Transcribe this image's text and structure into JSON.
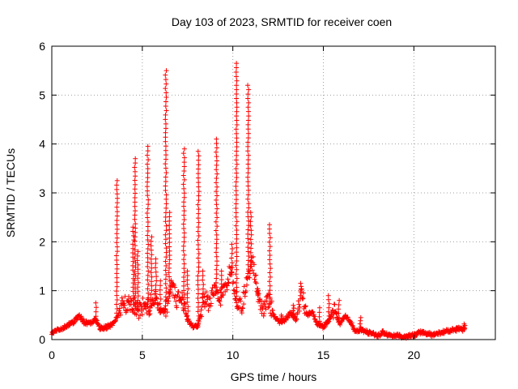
{
  "chart_data": {
    "type": "scatter",
    "title": "Day 103 of 2023, SRMTID for receiver coen",
    "xlabel": "GPS time / hours",
    "ylabel": "SRMTID / TECUs",
    "xlim": [
      0,
      24.5
    ],
    "ylim": [
      0,
      6
    ],
    "xticks": [
      0,
      5,
      10,
      15,
      20
    ],
    "yticks": [
      0,
      1,
      2,
      3,
      4,
      5,
      6
    ],
    "grid": true,
    "marker": "+",
    "series": [
      {
        "name": "SRMTID",
        "color": "#ff0000",
        "baseline": [
          [
            0.0,
            0.12
          ],
          [
            0.3,
            0.2
          ],
          [
            0.6,
            0.22
          ],
          [
            0.9,
            0.3
          ],
          [
            1.2,
            0.35
          ],
          [
            1.5,
            0.5
          ],
          [
            1.8,
            0.35
          ],
          [
            2.1,
            0.33
          ],
          [
            2.4,
            0.42
          ],
          [
            2.7,
            0.22
          ],
          [
            3.0,
            0.25
          ],
          [
            3.3,
            0.3
          ],
          [
            3.6,
            0.45
          ],
          [
            3.9,
            0.75
          ],
          [
            4.2,
            0.7
          ],
          [
            4.5,
            0.72
          ],
          [
            4.8,
            0.6
          ],
          [
            5.1,
            0.72
          ],
          [
            5.4,
            0.65
          ],
          [
            5.7,
            0.9
          ],
          [
            6.0,
            0.55
          ],
          [
            6.3,
            0.6
          ],
          [
            6.6,
            1.1
          ],
          [
            6.9,
            0.8
          ],
          [
            7.2,
            0.9
          ],
          [
            7.5,
            0.4
          ],
          [
            7.8,
            0.25
          ],
          [
            8.1,
            0.3
          ],
          [
            8.4,
            0.85
          ],
          [
            8.7,
            0.75
          ],
          [
            9.0,
            1.05
          ],
          [
            9.3,
            0.85
          ],
          [
            9.6,
            1.0
          ],
          [
            9.9,
            1.5
          ],
          [
            10.2,
            0.8
          ],
          [
            10.5,
            0.65
          ],
          [
            10.8,
            1.3
          ],
          [
            11.1,
            1.6
          ],
          [
            11.4,
            0.9
          ],
          [
            11.7,
            0.6
          ],
          [
            12.0,
            0.8
          ],
          [
            12.3,
            0.45
          ],
          [
            12.6,
            0.35
          ],
          [
            12.9,
            0.4
          ],
          [
            13.2,
            0.55
          ],
          [
            13.5,
            0.4
          ],
          [
            13.8,
            1.0
          ],
          [
            14.1,
            0.5
          ],
          [
            14.4,
            0.55
          ],
          [
            14.7,
            0.3
          ],
          [
            15.0,
            0.25
          ],
          [
            15.3,
            0.4
          ],
          [
            15.6,
            0.65
          ],
          [
            15.9,
            0.3
          ],
          [
            16.2,
            0.5
          ],
          [
            16.5,
            0.35
          ],
          [
            16.8,
            0.15
          ],
          [
            17.1,
            0.2
          ],
          [
            17.4,
            0.15
          ],
          [
            17.7,
            0.12
          ],
          [
            18.0,
            0.08
          ],
          [
            18.3,
            0.15
          ],
          [
            18.6,
            0.1
          ],
          [
            18.9,
            0.08
          ],
          [
            19.2,
            0.07
          ],
          [
            19.5,
            0.05
          ],
          [
            19.8,
            0.08
          ],
          [
            20.1,
            0.1
          ],
          [
            20.4,
            0.15
          ],
          [
            20.7,
            0.12
          ],
          [
            21.0,
            0.1
          ],
          [
            21.3,
            0.12
          ],
          [
            21.6,
            0.15
          ],
          [
            21.9,
            0.18
          ],
          [
            22.2,
            0.2
          ],
          [
            22.5,
            0.22
          ],
          [
            22.8,
            0.2
          ]
        ],
        "spikes": [
          [
            2.45,
            0.75
          ],
          [
            3.6,
            3.25
          ],
          [
            4.5,
            2.3
          ],
          [
            4.6,
            3.7
          ],
          [
            4.75,
            1.8
          ],
          [
            5.3,
            3.95
          ],
          [
            5.5,
            2.1
          ],
          [
            5.75,
            1.65
          ],
          [
            6.0,
            1.2
          ],
          [
            6.3,
            5.5
          ],
          [
            6.5,
            2.6
          ],
          [
            7.3,
            3.9
          ],
          [
            7.5,
            1.4
          ],
          [
            8.1,
            3.85
          ],
          [
            8.35,
            1.4
          ],
          [
            9.1,
            4.1
          ],
          [
            9.35,
            1.4
          ],
          [
            9.95,
            1.95
          ],
          [
            10.2,
            5.65
          ],
          [
            10.85,
            5.2
          ],
          [
            11.0,
            2.6
          ],
          [
            11.4,
            1.0
          ],
          [
            12.05,
            2.35
          ],
          [
            12.7,
            0.5
          ],
          [
            13.35,
            0.7
          ],
          [
            13.75,
            1.15
          ],
          [
            14.8,
            0.65
          ],
          [
            15.3,
            0.9
          ],
          [
            15.85,
            0.8
          ],
          [
            17.05,
            0.45
          ],
          [
            22.8,
            0.32
          ]
        ]
      }
    ]
  }
}
